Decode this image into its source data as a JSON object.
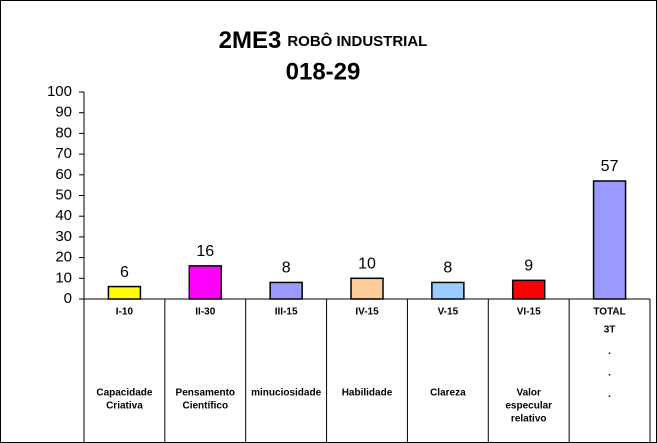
{
  "chart_data": {
    "type": "bar",
    "title": "2ME3",
    "title_suffix": "ROBÔ INDUSTRIAL",
    "subtitle": "018-29",
    "categories": [
      "I-10",
      "II-30",
      "III-15",
      "IV-15",
      "V-15",
      "VI-15",
      "TOTAL"
    ],
    "descriptions": [
      [
        "Capacidade",
        "Criativa"
      ],
      [
        "Pensamento",
        "Científico"
      ],
      [
        "minuciosidade"
      ],
      [
        "Habilidade"
      ],
      [
        "Clareza"
      ],
      [
        "Valor",
        "especular",
        "relativo"
      ],
      null
    ],
    "notes": [
      null,
      null,
      null,
      null,
      null,
      null,
      [
        "3T",
        ".",
        ".",
        "."
      ]
    ],
    "values": [
      6,
      16,
      8,
      10,
      8,
      9,
      57
    ],
    "colors": [
      "#ffff00",
      "#ff00ff",
      "#9999ff",
      "#ffcc99",
      "#99ccff",
      "#ff0000",
      "#9999ff"
    ],
    "ylim": [
      0,
      100
    ],
    "yticks": [
      0,
      10,
      20,
      30,
      40,
      50,
      60,
      70,
      80,
      90,
      100
    ],
    "grid": false
  }
}
